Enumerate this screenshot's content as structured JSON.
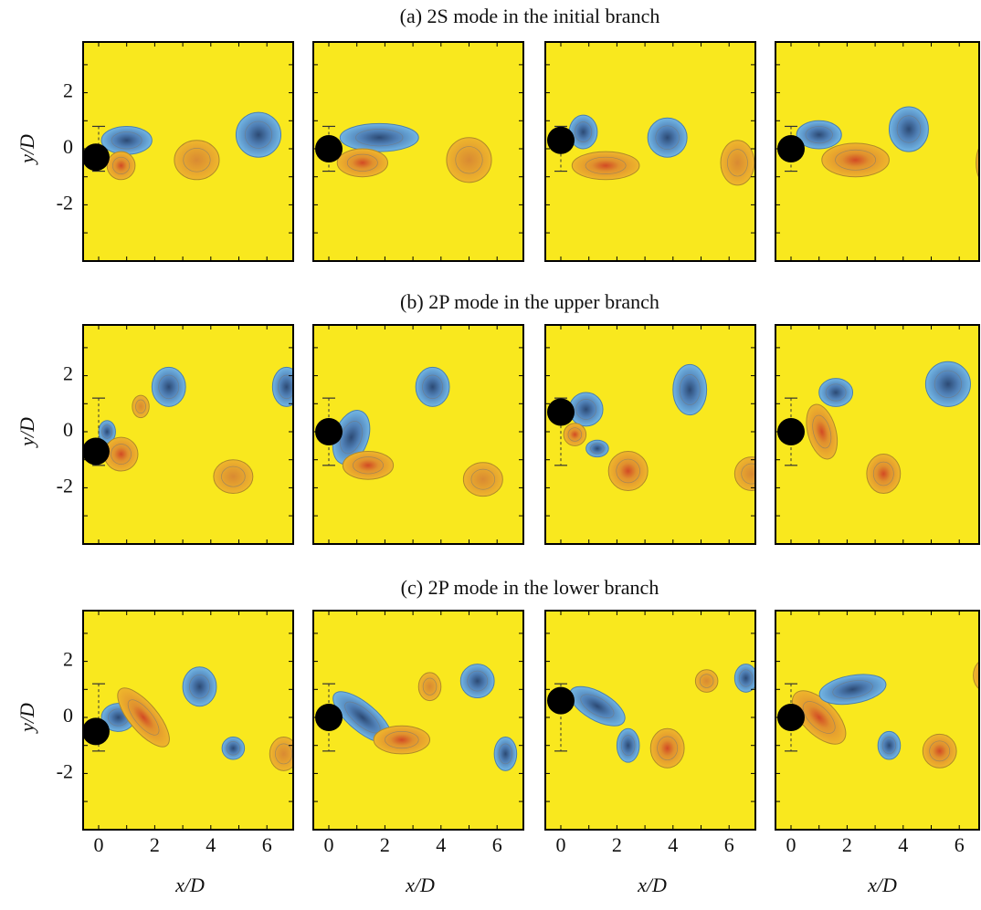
{
  "rows": [
    {
      "title": "(a) 2S mode in the initial branch"
    },
    {
      "title": "(b) 2P mode in the upper branch"
    },
    {
      "title": "(c) 2P mode in the lower branch"
    }
  ],
  "y_label": "y/D",
  "x_label": "x/D",
  "y_tick_labels": [
    "2",
    "0",
    "-2"
  ],
  "x_tick_labels": [
    "0",
    "2",
    "4",
    "6"
  ]
}
